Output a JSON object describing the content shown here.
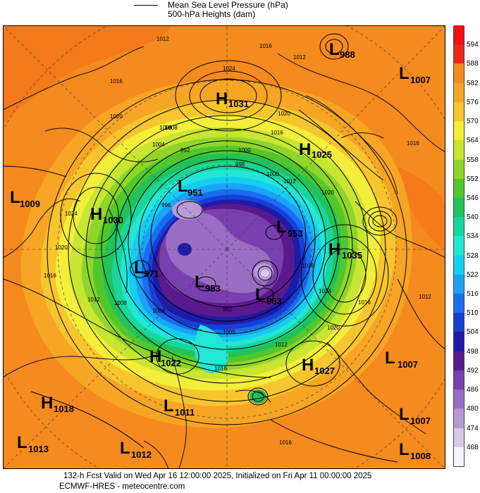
{
  "legend": {
    "mslp_label": "Mean Sea Level Pressure (hPa)",
    "heights_label": "500-hPa Heights (dam)"
  },
  "colors": {
    "background": "#f58a1e",
    "coastline": "#111111",
    "contour": "#000000"
  },
  "colorbar": {
    "levels": [
      "468",
      "474",
      "480",
      "486",
      "492",
      "498",
      "504",
      "510",
      "516",
      "522",
      "528",
      "534",
      "540",
      "546",
      "552",
      "558",
      "564",
      "570",
      "576",
      "582",
      "588",
      "594"
    ],
    "colors": [
      "#f7f5fb",
      "#d9c9ea",
      "#b79ad6",
      "#9a6dc4",
      "#7a3fae",
      "#5a1a8e",
      "#1f1aa8",
      "#1440d8",
      "#1a6cf0",
      "#1aa3f5",
      "#14cdf0",
      "#22e6d6",
      "#19d69b",
      "#22c25a",
      "#52c72c",
      "#8fd52a",
      "#c8e532",
      "#f2ee3a",
      "#f7c52e",
      "#f7a524",
      "#f58a1e",
      "#e82a1a",
      "#f01010"
    ]
  },
  "isobar_labels": [
    "1012",
    "1016",
    "1024",
    "1020",
    "1016",
    "1012",
    "1016",
    "1020",
    "1008",
    "1004",
    "1000",
    "992",
    "996",
    "1000",
    "1008",
    "1016",
    "1012",
    "1020",
    "1024",
    "1020",
    "1016",
    "1012",
    "1008",
    "1004",
    "992",
    "996",
    "1000",
    "1012",
    "1016",
    "1020",
    "1016",
    "1012",
    "1016",
    "1024",
    "1016"
  ],
  "centers": [
    {
      "letter": "L",
      "value": "988"
    },
    {
      "letter": "L",
      "value": "1007"
    },
    {
      "letter": "H",
      "value": "1031"
    },
    {
      "letter": "H",
      "value": "1025"
    },
    {
      "letter": "L",
      "value": "1009"
    },
    {
      "letter": "H",
      "value": "1030"
    },
    {
      "letter": "L",
      "value": "951"
    },
    {
      "letter": "L",
      "value": "953"
    },
    {
      "letter": "H",
      "value": "1035"
    },
    {
      "letter": "L",
      "value": "971"
    },
    {
      "letter": "L",
      "value": "953"
    },
    {
      "letter": "L",
      "value": "963"
    },
    {
      "letter": "H",
      "value": "1022"
    },
    {
      "letter": "H",
      "value": "1027"
    },
    {
      "letter": "L",
      "value": "1007"
    },
    {
      "letter": "H",
      "value": "1018"
    },
    {
      "letter": "L",
      "value": "1011"
    },
    {
      "letter": "L",
      "value": "1007"
    },
    {
      "letter": "L",
      "value": "1013"
    },
    {
      "letter": "L",
      "value": "1012"
    },
    {
      "letter": "L",
      "value": "1008"
    }
  ],
  "footer": {
    "line1": "132-h Fcst Valid on Wed Apr 16 12:00:00 2025, Initialized on Fri Apr 11 00:00:00 2025",
    "line2": "ECMWF-HRES - meteocentre.com"
  }
}
